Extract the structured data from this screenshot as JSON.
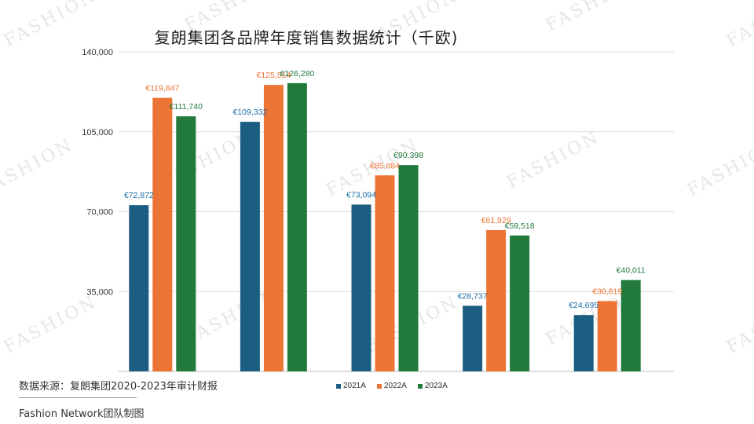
{
  "title": "复朗集团各品牌年度销售数据统计（千欧)",
  "source_note": "数据来源：复朗集团2020-2023年审计财报",
  "credit": "Fashion Network团队制图",
  "watermark_text": "FASHION",
  "chart_data": {
    "type": "bar",
    "title": "复朗集团各品牌年度销售数据统计（千欧)",
    "xlabel": "",
    "ylabel": "",
    "categories": [
      "",
      "",
      "",
      "",
      ""
    ],
    "ylim": [
      0,
      140000
    ],
    "yticks": [
      0,
      35000,
      70000,
      105000,
      140000
    ],
    "ytick_labels": [
      "",
      "35,000",
      "70,000",
      "105,000",
      "140,000"
    ],
    "grid": true,
    "legend_position": "bottom",
    "series": [
      {
        "name": "2021A",
        "color": "#1b5e82",
        "values": [
          72872,
          109332,
          73094,
          28737,
          24695
        ],
        "labels": [
          "€72,872",
          "€109,332",
          "€73,094",
          "€28,737",
          "€24,695"
        ]
      },
      {
        "name": "2022A",
        "color": "#ec7434",
        "values": [
          119847,
          125514,
          85884,
          61929,
          30819
        ],
        "labels": [
          "€119,847",
          "€125,514",
          "€85,884",
          "€61,929",
          "€30,819"
        ]
      },
      {
        "name": "2023A",
        "color": "#217a3c",
        "values": [
          111740,
          126280,
          90398,
          59518,
          40011
        ],
        "labels": [
          "€111,740",
          "€126,280",
          "€90,398",
          "€59,518",
          "€40,011"
        ]
      }
    ]
  }
}
